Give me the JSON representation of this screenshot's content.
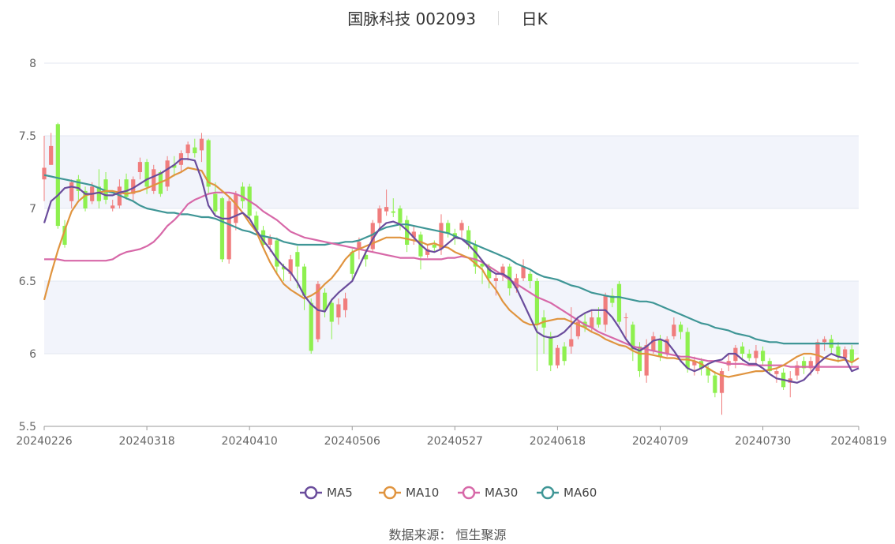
{
  "header": {
    "stock_name_code": "国脉科技 002093",
    "period": "日K"
  },
  "footer": {
    "source_label": "数据来源：",
    "source_value": "恒生聚源"
  },
  "colors": {
    "up": "#f07d7d",
    "down": "#8ef04f",
    "ma5": "#6a4c9c",
    "ma10": "#e0943f",
    "ma30": "#d768a8",
    "ma60": "#3f9696",
    "band": "#f2f4fb",
    "grid": "#e3e7f1",
    "axis": "#999999"
  },
  "chart_data": {
    "type": "candlestick",
    "ylim": [
      5.5,
      8
    ],
    "yticks": [
      5.5,
      6,
      6.5,
      7,
      7.5,
      8
    ],
    "xticks": [
      "20240226",
      "20240318",
      "20240410",
      "20240506",
      "20240527",
      "20240618",
      "20240709",
      "20240730",
      "20240819"
    ],
    "legend": [
      "MA5",
      "MA10",
      "MA30",
      "MA60"
    ],
    "legend_position": "bottom",
    "dates": [
      "20240226",
      "20240227",
      "20240228",
      "20240229",
      "20240301",
      "20240304",
      "20240305",
      "20240306",
      "20240307",
      "20240308",
      "20240311",
      "20240312",
      "20240313",
      "20240314",
      "20240315",
      "20240318",
      "20240319",
      "20240320",
      "20240321",
      "20240322",
      "20240325",
      "20240326",
      "20240327",
      "20240328",
      "20240329",
      "20240401",
      "20240402",
      "20240403",
      "20240408",
      "20240409",
      "20240410",
      "20240411",
      "20240412",
      "20240415",
      "20240416",
      "20240417",
      "20240418",
      "20240419",
      "20240422",
      "20240423",
      "20240424",
      "20240425",
      "20240426",
      "20240429",
      "20240430",
      "20240506",
      "20240507",
      "20240508",
      "20240509",
      "20240510",
      "20240513",
      "20240514",
      "20240515",
      "20240516",
      "20240517",
      "20240520",
      "20240521",
      "20240522",
      "20240523",
      "20240524",
      "20240527",
      "20240528",
      "20240529",
      "20240530",
      "20240531",
      "20240603",
      "20240604",
      "20240605",
      "20240606",
      "20240607",
      "20240611",
      "20240612",
      "20240613",
      "20240614",
      "20240617",
      "20240618",
      "20240619",
      "20240620",
      "20240621",
      "20240624",
      "20240625",
      "20240626",
      "20240627",
      "20240628",
      "20240701",
      "20240702",
      "20240703",
      "20240704",
      "20240705",
      "20240708",
      "20240709",
      "20240710",
      "20240711",
      "20240712",
      "20240715",
      "20240716",
      "20240717",
      "20240718",
      "20240719",
      "20240722",
      "20240723",
      "20240724",
      "20240725",
      "20240726",
      "20240729",
      "20240730",
      "20240731",
      "20240801",
      "20240802",
      "20240805",
      "20240806",
      "20240807",
      "20240808",
      "20240809",
      "20240812",
      "20240813",
      "20240814",
      "20240815",
      "20240816",
      "20240819"
    ],
    "candles": [
      [
        7.2,
        7.28,
        7.05,
        7.5
      ],
      [
        7.3,
        7.43,
        7.3,
        7.52
      ],
      [
        7.58,
        6.88,
        6.86,
        7.59
      ],
      [
        6.88,
        6.75,
        6.73,
        6.92
      ],
      [
        7.05,
        7.18,
        7.0,
        7.2
      ],
      [
        7.2,
        7.12,
        7.06,
        7.23
      ],
      [
        7.12,
        7.0,
        6.98,
        7.15
      ],
      [
        7.05,
        7.15,
        7.03,
        7.18
      ],
      [
        7.15,
        7.05,
        7.0,
        7.27
      ],
      [
        7.2,
        7.06,
        7.03,
        7.25
      ],
      [
        7.0,
        7.02,
        6.98,
        7.06
      ],
      [
        7.02,
        7.15,
        7.0,
        7.2
      ],
      [
        7.2,
        7.08,
        7.06,
        7.24
      ],
      [
        7.1,
        7.2,
        7.05,
        7.22
      ],
      [
        7.25,
        7.32,
        7.2,
        7.35
      ],
      [
        7.32,
        7.15,
        7.1,
        7.34
      ],
      [
        7.12,
        7.27,
        7.1,
        7.3
      ],
      [
        7.25,
        7.1,
        7.08,
        7.26
      ],
      [
        7.15,
        7.33,
        7.12,
        7.36
      ],
      [
        7.3,
        7.28,
        7.22,
        7.36
      ],
      [
        7.3,
        7.38,
        7.25,
        7.4
      ],
      [
        7.38,
        7.44,
        7.33,
        7.46
      ],
      [
        7.42,
        7.38,
        7.35,
        7.48
      ],
      [
        7.4,
        7.48,
        7.32,
        7.52
      ],
      [
        7.47,
        7.15,
        7.1,
        7.48
      ],
      [
        7.1,
        6.98,
        6.95,
        7.18
      ],
      [
        7.07,
        6.65,
        6.63,
        7.08
      ],
      [
        6.65,
        7.05,
        6.62,
        7.08
      ],
      [
        6.9,
        7.1,
        6.85,
        7.12
      ],
      [
        7.15,
        7.05,
        7.0,
        7.18
      ],
      [
        7.15,
        6.95,
        6.92,
        7.17
      ],
      [
        6.95,
        6.85,
        6.82,
        6.98
      ],
      [
        6.85,
        6.75,
        6.73,
        6.88
      ],
      [
        6.75,
        6.8,
        6.7,
        6.82
      ],
      [
        6.78,
        6.6,
        6.55,
        6.8
      ],
      [
        6.6,
        6.58,
        6.5,
        6.62
      ],
      [
        6.55,
        6.65,
        6.5,
        6.68
      ],
      [
        6.7,
        6.6,
        6.45,
        6.74
      ],
      [
        6.6,
        6.4,
        6.3,
        6.62
      ],
      [
        6.35,
        6.02,
        6.0,
        6.38
      ],
      [
        6.1,
        6.48,
        6.08,
        6.5
      ],
      [
        6.42,
        6.3,
        6.25,
        6.45
      ],
      [
        6.35,
        6.22,
        6.1,
        6.38
      ],
      [
        6.25,
        6.34,
        6.2,
        6.38
      ],
      [
        6.3,
        6.38,
        6.25,
        6.42
      ],
      [
        6.7,
        6.55,
        6.5,
        6.72
      ],
      [
        6.72,
        6.77,
        6.65,
        6.8
      ],
      [
        6.68,
        6.65,
        6.6,
        6.72
      ],
      [
        6.72,
        6.9,
        6.7,
        6.92
      ],
      [
        6.9,
        7.0,
        6.85,
        7.02
      ],
      [
        6.98,
        7.01,
        6.95,
        7.13
      ],
      [
        6.98,
        6.97,
        6.94,
        7.07
      ],
      [
        7.0,
        6.9,
        6.85,
        7.02
      ],
      [
        6.92,
        6.75,
        6.7,
        6.95
      ],
      [
        6.8,
        6.84,
        6.75,
        6.88
      ],
      [
        6.82,
        6.67,
        6.58,
        6.84
      ],
      [
        6.68,
        6.72,
        6.66,
        6.75
      ],
      [
        6.75,
        6.73,
        6.7,
        6.78
      ],
      [
        6.72,
        6.9,
        6.68,
        6.96
      ],
      [
        6.9,
        6.83,
        6.8,
        6.92
      ],
      [
        6.83,
        6.8,
        6.75,
        6.86
      ],
      [
        6.85,
        6.9,
        6.8,
        6.92
      ],
      [
        6.85,
        6.75,
        6.72,
        6.88
      ],
      [
        6.75,
        6.6,
        6.55,
        6.78
      ],
      [
        6.62,
        6.6,
        6.48,
        6.65
      ],
      [
        6.6,
        6.52,
        6.45,
        6.62
      ],
      [
        6.5,
        6.52,
        6.4,
        6.55
      ],
      [
        6.55,
        6.6,
        6.5,
        6.62
      ],
      [
        6.6,
        6.45,
        6.4,
        6.62
      ],
      [
        6.45,
        6.52,
        6.42,
        6.55
      ],
      [
        6.52,
        6.6,
        6.5,
        6.65
      ],
      [
        6.55,
        6.5,
        6.45,
        6.57
      ],
      [
        6.5,
        6.2,
        5.88,
        6.52
      ],
      [
        6.25,
        6.18,
        6.0,
        6.3
      ],
      [
        6.12,
        5.92,
        5.88,
        6.15
      ],
      [
        5.92,
        6.04,
        5.9,
        6.06
      ],
      [
        6.05,
        5.95,
        5.92,
        6.08
      ],
      [
        6.05,
        6.1,
        6.0,
        6.32
      ],
      [
        6.12,
        6.22,
        6.1,
        6.24
      ],
      [
        6.22,
        6.18,
        6.15,
        6.28
      ],
      [
        6.18,
        6.25,
        6.15,
        6.3
      ],
      [
        6.25,
        6.2,
        6.18,
        6.32
      ],
      [
        6.2,
        6.4,
        6.15,
        6.42
      ],
      [
        6.4,
        6.35,
        6.32,
        6.45
      ],
      [
        6.48,
        6.22,
        6.2,
        6.5
      ],
      [
        6.25,
        6.25,
        6.1,
        6.28
      ],
      [
        6.2,
        6.03,
        5.95,
        6.22
      ],
      [
        6.05,
        5.88,
        5.84,
        6.08
      ],
      [
        5.85,
        6.06,
        5.8,
        6.1
      ],
      [
        6.02,
        6.12,
        6.0,
        6.15
      ],
      [
        6.1,
        5.98,
        5.95,
        6.13
      ],
      [
        6.0,
        6.1,
        5.98,
        6.12
      ],
      [
        6.12,
        6.2,
        6.1,
        6.25
      ],
      [
        6.2,
        6.15,
        6.1,
        6.22
      ],
      [
        6.15,
        5.9,
        5.87,
        6.18
      ],
      [
        5.92,
        5.95,
        5.85,
        5.98
      ],
      [
        5.95,
        5.9,
        5.85,
        5.97
      ],
      [
        5.9,
        5.85,
        5.8,
        5.92
      ],
      [
        5.85,
        5.73,
        5.7,
        5.88
      ],
      [
        5.73,
        5.88,
        5.58,
        5.9
      ],
      [
        5.92,
        5.95,
        5.88,
        6.0
      ],
      [
        5.95,
        6.04,
        5.9,
        6.06
      ],
      [
        6.05,
        6.0,
        5.95,
        6.08
      ],
      [
        6.0,
        5.97,
        5.95,
        6.03
      ],
      [
        5.97,
        6.02,
        5.93,
        6.06
      ],
      [
        6.02,
        5.95,
        5.92,
        6.05
      ],
      [
        5.95,
        5.88,
        5.86,
        5.97
      ],
      [
        5.86,
        5.88,
        5.8,
        5.9
      ],
      [
        5.87,
        5.77,
        5.75,
        5.9
      ],
      [
        5.8,
        5.83,
        5.7,
        5.88
      ],
      [
        5.85,
        5.92,
        5.82,
        5.95
      ],
      [
        5.95,
        5.9,
        5.86,
        5.98
      ],
      [
        5.9,
        5.95,
        5.85,
        5.98
      ],
      [
        5.88,
        6.08,
        5.86,
        6.1
      ],
      [
        6.08,
        6.1,
        6.02,
        6.12
      ],
      [
        6.1,
        6.04,
        6.0,
        6.13
      ],
      [
        6.05,
        5.98,
        5.94,
        6.08
      ],
      [
        5.97,
        6.03,
        5.95,
        6.05
      ],
      [
        6.03,
        5.95,
        5.92,
        6.06
      ]
    ],
    "ma5": [
      6.9,
      7.05,
      7.09,
      7.14,
      7.15,
      7.14,
      7.1,
      7.1,
      7.11,
      7.09,
      7.09,
      7.11,
      7.12,
      7.14,
      7.17,
      7.2,
      7.22,
      7.24,
      7.27,
      7.3,
      7.34,
      7.34,
      7.33,
      7.2,
      7.02,
      6.95,
      6.93,
      6.93,
      6.95,
      6.97,
      6.93,
      6.85,
      6.78,
      6.72,
      6.65,
      6.6,
      6.56,
      6.49,
      6.4,
      6.34,
      6.3,
      6.29,
      6.37,
      6.42,
      6.46,
      6.5,
      6.6,
      6.7,
      6.79,
      6.86,
      6.9,
      6.91,
      6.89,
      6.85,
      6.8,
      6.75,
      6.71,
      6.7,
      6.72,
      6.76,
      6.8,
      6.79,
      6.75,
      6.7,
      6.64,
      6.58,
      6.55,
      6.55,
      6.52,
      6.45,
      6.35,
      6.25,
      6.15,
      6.12,
      6.11,
      6.12,
      6.15,
      6.2,
      6.25,
      6.28,
      6.3,
      6.3,
      6.3,
      6.25,
      6.18,
      6.1,
      6.04,
      6.02,
      6.05,
      6.09,
      6.1,
      6.08,
      6.02,
      5.95,
      5.9,
      5.88,
      5.9,
      5.93,
      5.95,
      5.96,
      6.0,
      6.0,
      5.96,
      5.93,
      5.93,
      5.9,
      5.86,
      5.83,
      5.82,
      5.81,
      5.8,
      5.82,
      5.87,
      5.93,
      5.97,
      6.0,
      5.98,
      5.97,
      5.88,
      5.9
    ],
    "ma10": [
      6.37,
      6.55,
      6.71,
      6.85,
      6.98,
      7.05,
      7.09,
      7.1,
      7.11,
      7.12,
      7.12,
      7.11,
      7.1,
      7.11,
      7.12,
      7.14,
      7.16,
      7.18,
      7.2,
      7.23,
      7.25,
      7.28,
      7.27,
      7.26,
      7.18,
      7.16,
      7.12,
      7.08,
      7.03,
      6.97,
      6.9,
      6.84,
      6.73,
      6.63,
      6.55,
      6.48,
      6.44,
      6.41,
      6.38,
      6.4,
      6.43,
      6.48,
      6.52,
      6.58,
      6.65,
      6.7,
      6.72,
      6.74,
      6.76,
      6.78,
      6.8,
      6.8,
      6.8,
      6.79,
      6.78,
      6.77,
      6.75,
      6.76,
      6.74,
      6.73,
      6.7,
      6.68,
      6.66,
      6.62,
      6.58,
      6.5,
      6.44,
      6.36,
      6.3,
      6.26,
      6.22,
      6.2,
      6.2,
      6.22,
      6.23,
      6.24,
      6.24,
      6.22,
      6.2,
      6.18,
      6.15,
      6.13,
      6.1,
      6.08,
      6.06,
      6.05,
      6.02,
      6.0,
      6.0,
      5.99,
      5.98,
      5.97,
      5.97,
      5.96,
      5.96,
      5.95,
      5.93,
      5.9,
      5.87,
      5.85,
      5.84,
      5.85,
      5.86,
      5.87,
      5.88,
      5.88,
      5.89,
      5.9,
      5.92,
      5.95,
      5.98,
      6.0,
      6.0,
      5.99,
      5.97,
      5.96,
      5.95,
      5.96,
      5.94,
      5.97
    ],
    "ma30": [
      6.65,
      6.65,
      6.65,
      6.64,
      6.64,
      6.64,
      6.64,
      6.64,
      6.64,
      6.64,
      6.65,
      6.68,
      6.7,
      6.71,
      6.72,
      6.74,
      6.77,
      6.82,
      6.88,
      6.92,
      6.97,
      7.03,
      7.06,
      7.08,
      7.1,
      7.11,
      7.11,
      7.11,
      7.1,
      7.08,
      7.05,
      7.02,
      6.98,
      6.95,
      6.92,
      6.88,
      6.84,
      6.82,
      6.8,
      6.79,
      6.78,
      6.77,
      6.76,
      6.75,
      6.74,
      6.73,
      6.72,
      6.71,
      6.7,
      6.69,
      6.68,
      6.67,
      6.66,
      6.66,
      6.66,
      6.65,
      6.65,
      6.65,
      6.65,
      6.66,
      6.66,
      6.67,
      6.66,
      6.65,
      6.63,
      6.6,
      6.57,
      6.54,
      6.51,
      6.48,
      6.45,
      6.42,
      6.39,
      6.37,
      6.35,
      6.32,
      6.29,
      6.26,
      6.23,
      6.2,
      6.18,
      6.15,
      6.13,
      6.11,
      6.09,
      6.07,
      6.05,
      6.04,
      6.03,
      6.02,
      6.01,
      6.0,
      5.99,
      5.98,
      5.98,
      5.97,
      5.96,
      5.95,
      5.95,
      5.94,
      5.93,
      5.93,
      5.93,
      5.92,
      5.92,
      5.92,
      5.92,
      5.92,
      5.92,
      5.91,
      5.91,
      5.91,
      5.91,
      5.91,
      5.91,
      5.91,
      5.91,
      5.91,
      5.91,
      5.91
    ],
    "ma60": [
      7.23,
      7.22,
      7.21,
      7.2,
      7.19,
      7.18,
      7.17,
      7.16,
      7.14,
      7.12,
      7.11,
      7.09,
      7.07,
      7.05,
      7.02,
      7.0,
      6.99,
      6.98,
      6.97,
      6.97,
      6.96,
      6.96,
      6.95,
      6.94,
      6.94,
      6.93,
      6.91,
      6.89,
      6.87,
      6.85,
      6.84,
      6.82,
      6.81,
      6.8,
      6.79,
      6.77,
      6.76,
      6.75,
      6.75,
      6.75,
      6.75,
      6.75,
      6.76,
      6.76,
      6.77,
      6.77,
      6.78,
      6.8,
      6.82,
      6.85,
      6.87,
      6.88,
      6.89,
      6.89,
      6.88,
      6.87,
      6.86,
      6.85,
      6.84,
      6.83,
      6.81,
      6.79,
      6.77,
      6.75,
      6.73,
      6.71,
      6.69,
      6.67,
      6.65,
      6.62,
      6.6,
      6.58,
      6.55,
      6.53,
      6.52,
      6.51,
      6.49,
      6.47,
      6.46,
      6.44,
      6.42,
      6.41,
      6.4,
      6.39,
      6.39,
      6.38,
      6.37,
      6.36,
      6.36,
      6.35,
      6.33,
      6.31,
      6.29,
      6.27,
      6.25,
      6.23,
      6.21,
      6.2,
      6.18,
      6.17,
      6.16,
      6.14,
      6.13,
      6.12,
      6.1,
      6.09,
      6.08,
      6.08,
      6.07,
      6.07,
      6.07,
      6.07,
      6.07,
      6.07,
      6.07,
      6.07,
      6.07,
      6.07,
      6.07,
      6.07
    ]
  }
}
